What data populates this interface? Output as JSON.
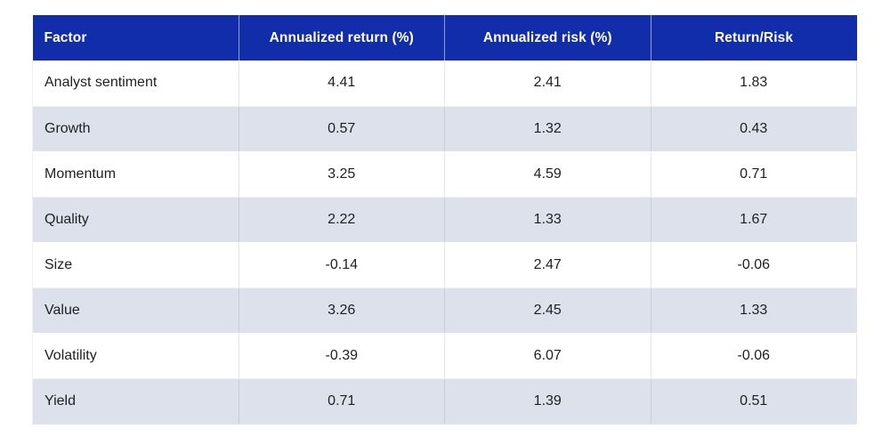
{
  "colors": {
    "header_bg": "#112DA9",
    "header_text": "#FFFFFF",
    "stripe_bg": "#DCE1EB",
    "row_bg": "#FFFFFF",
    "body_text": "#1F1F1F"
  },
  "table": {
    "columns": [
      "Factor",
      "Annualized return (%)",
      "Annualized risk (%)",
      "Return/Risk"
    ],
    "rows": [
      {
        "factor": "Analyst sentiment",
        "return": "4.41",
        "risk": "2.41",
        "ratio": "1.83"
      },
      {
        "factor": "Growth",
        "return": "0.57",
        "risk": "1.32",
        "ratio": "0.43"
      },
      {
        "factor": "Momentum",
        "return": "3.25",
        "risk": "4.59",
        "ratio": "0.71"
      },
      {
        "factor": "Quality",
        "return": "2.22",
        "risk": "1.33",
        "ratio": "1.67"
      },
      {
        "factor": "Size",
        "return": "-0.14",
        "risk": "2.47",
        "ratio": "-0.06"
      },
      {
        "factor": "Value",
        "return": "3.26",
        "risk": "2.45",
        "ratio": "1.33"
      },
      {
        "factor": "Volatility",
        "return": "-0.39",
        "risk": "6.07",
        "ratio": "-0.06"
      },
      {
        "factor": "Yield",
        "return": "0.71",
        "risk": "1.39",
        "ratio": "0.51"
      }
    ]
  },
  "chart_data": {
    "type": "table",
    "title": "",
    "columns": [
      "Factor",
      "Annualized return (%)",
      "Annualized risk (%)",
      "Return/Risk"
    ],
    "rows": [
      [
        "Analyst sentiment",
        4.41,
        2.41,
        1.83
      ],
      [
        "Growth",
        0.57,
        1.32,
        0.43
      ],
      [
        "Momentum",
        3.25,
        4.59,
        0.71
      ],
      [
        "Quality",
        2.22,
        1.33,
        1.67
      ],
      [
        "Size",
        -0.14,
        2.47,
        -0.06
      ],
      [
        "Value",
        3.26,
        2.45,
        1.33
      ],
      [
        "Volatility",
        -0.39,
        6.07,
        -0.06
      ],
      [
        "Yield",
        0.71,
        1.39,
        0.51
      ]
    ],
    "layout_hints": {
      "header_fill": "#112DA9",
      "zebra_striping": true,
      "stripe_rows": [
        "Growth",
        "Quality",
        "Value",
        "Yield"
      ],
      "first_column_align": "left",
      "numeric_columns_align": "center"
    }
  }
}
